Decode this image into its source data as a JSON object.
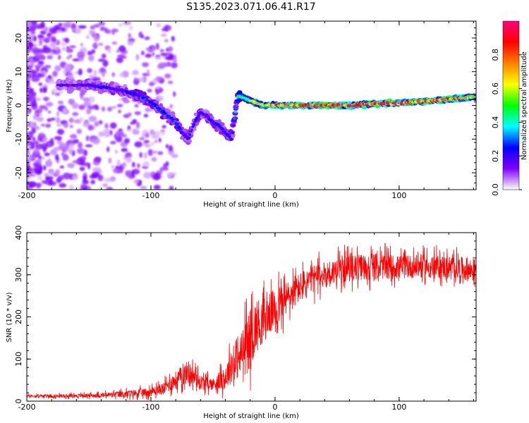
{
  "title": "S135.2023.071.06.41.R17",
  "chart_data": [
    {
      "type": "heatmap",
      "title": "S135.2023.071.06.41.R17",
      "xlabel": "Height of straight line (km)",
      "ylabel": "Frequency (Hz)",
      "xlim": [
        -200,
        162
      ],
      "ylim": [
        -25,
        25
      ],
      "x_ticks": [
        -200,
        -100,
        0,
        100
      ],
      "y_ticks": [
        -20,
        -10,
        0,
        10,
        20
      ],
      "colorbar": {
        "label": "Normalized spectral amplitude",
        "range": [
          0,
          1
        ],
        "ticks": [
          0.0,
          0.2,
          0.4,
          0.6,
          0.8
        ],
        "colormap": [
          "#ffffff",
          "#8000ff",
          "#0000ff",
          "#00ffff",
          "#00ff00",
          "#ffff00",
          "#ff8000",
          "#ff0000",
          "#ff0080"
        ]
      },
      "ridge": {
        "x": [
          -165,
          -150,
          -140,
          -130,
          -120,
          -110,
          -100,
          -90,
          -80,
          -75,
          -70,
          -65,
          -60,
          -55,
          -50,
          -45,
          -40,
          -35,
          -30,
          -27,
          -20,
          -10,
          0,
          20,
          40,
          60,
          80,
          100,
          120,
          140,
          160
        ],
        "frequency": [
          6,
          6,
          5.5,
          5,
          4,
          3,
          1,
          -2,
          -5,
          -8,
          -10,
          -5,
          -2,
          -3,
          -5,
          -6,
          -8,
          -10,
          3,
          2.5,
          1.5,
          0,
          0,
          0,
          0,
          0,
          0.5,
          0.7,
          1.2,
          1.8,
          2.5
        ],
        "amplitude": [
          0.15,
          0.2,
          0.2,
          0.2,
          0.2,
          0.25,
          0.25,
          0.25,
          0.25,
          0.2,
          0.2,
          0.2,
          0.2,
          0.2,
          0.2,
          0.2,
          0.2,
          0.2,
          0.4,
          0.45,
          0.5,
          0.6,
          0.75,
          0.8,
          0.85,
          0.8,
          0.8,
          0.85,
          0.8,
          0.75,
          0.6
        ]
      }
    },
    {
      "type": "line",
      "xlabel": "Height of straight line (km)",
      "ylabel": "SNR (10 * v/v)",
      "xlim": [
        -200,
        162
      ],
      "ylim": [
        0,
        400
      ],
      "x_ticks": [
        -200,
        -100,
        0,
        100
      ],
      "y_ticks": [
        0,
        100,
        200,
        300,
        400
      ],
      "color": "#ff0000",
      "series": [
        {
          "x": [
            -200,
            -180,
            -160,
            -140,
            -120,
            -100,
            -90,
            -80,
            -70,
            -60,
            -50,
            -40,
            -35,
            -30,
            -25,
            -20,
            -15,
            -10,
            -5,
            0,
            10,
            20,
            30,
            40,
            50,
            60,
            80,
            100,
            120,
            140,
            160
          ],
          "values": [
            12,
            12,
            13,
            14,
            17,
            22,
            30,
            50,
            70,
            45,
            40,
            55,
            85,
            95,
            120,
            150,
            180,
            190,
            205,
            220,
            245,
            270,
            290,
            300,
            310,
            315,
            320,
            318,
            320,
            318,
            310
          ],
          "noise": [
            5,
            6,
            6,
            8,
            12,
            15,
            20,
            30,
            40,
            25,
            20,
            40,
            60,
            60,
            90,
            100,
            90,
            80,
            70,
            70,
            60,
            50,
            50,
            45,
            45,
            45,
            45,
            40,
            40,
            40,
            40
          ]
        }
      ]
    }
  ]
}
